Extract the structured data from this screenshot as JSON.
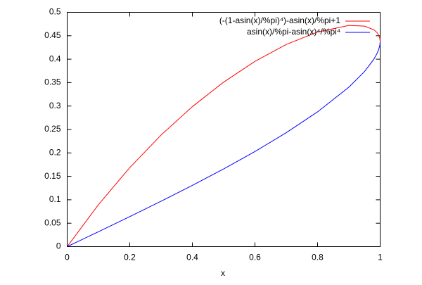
{
  "chart_data": {
    "type": "line",
    "xlabel": "x",
    "x": [
      0,
      0.1,
      0.2,
      0.3,
      0.4,
      0.5,
      0.6,
      0.7,
      0.8,
      0.9,
      0.95,
      0.98,
      0.99,
      0.995,
      0.999,
      1
    ],
    "series": [
      {
        "name": "(-(1-asin(x)/%pi)⁴)-asin(x)/%pi+1",
        "color": "#ff0000",
        "values": [
          0,
          0.08968,
          0.16867,
          0.23808,
          0.29872,
          0.35108,
          0.39538,
          0.43137,
          0.45803,
          0.47202,
          0.47054,
          0.46275,
          0.45679,
          0.45183,
          0.44431,
          0.4375
        ]
      },
      {
        "name": "asin(x)/%pi-asin(x)⁴/%pi⁴",
        "color": "#0000ff",
        "values": [
          0,
          0.03188,
          0.06408,
          0.0969,
          0.1307,
          0.1659,
          0.20307,
          0.24311,
          0.28758,
          0.34029,
          0.37359,
          0.40002,
          0.41211,
          0.42012,
          0.43008,
          0.4375
        ]
      }
    ],
    "xlim": [
      0,
      1
    ],
    "xticks": [
      0,
      0.2,
      0.4,
      0.6,
      0.8,
      1
    ],
    "ylim": [
      0,
      0.5
    ],
    "yticks": [
      0,
      0.05,
      0.1,
      0.15,
      0.2,
      0.25,
      0.3,
      0.35,
      0.4,
      0.45,
      0.5
    ],
    "legend": "top-right"
  }
}
